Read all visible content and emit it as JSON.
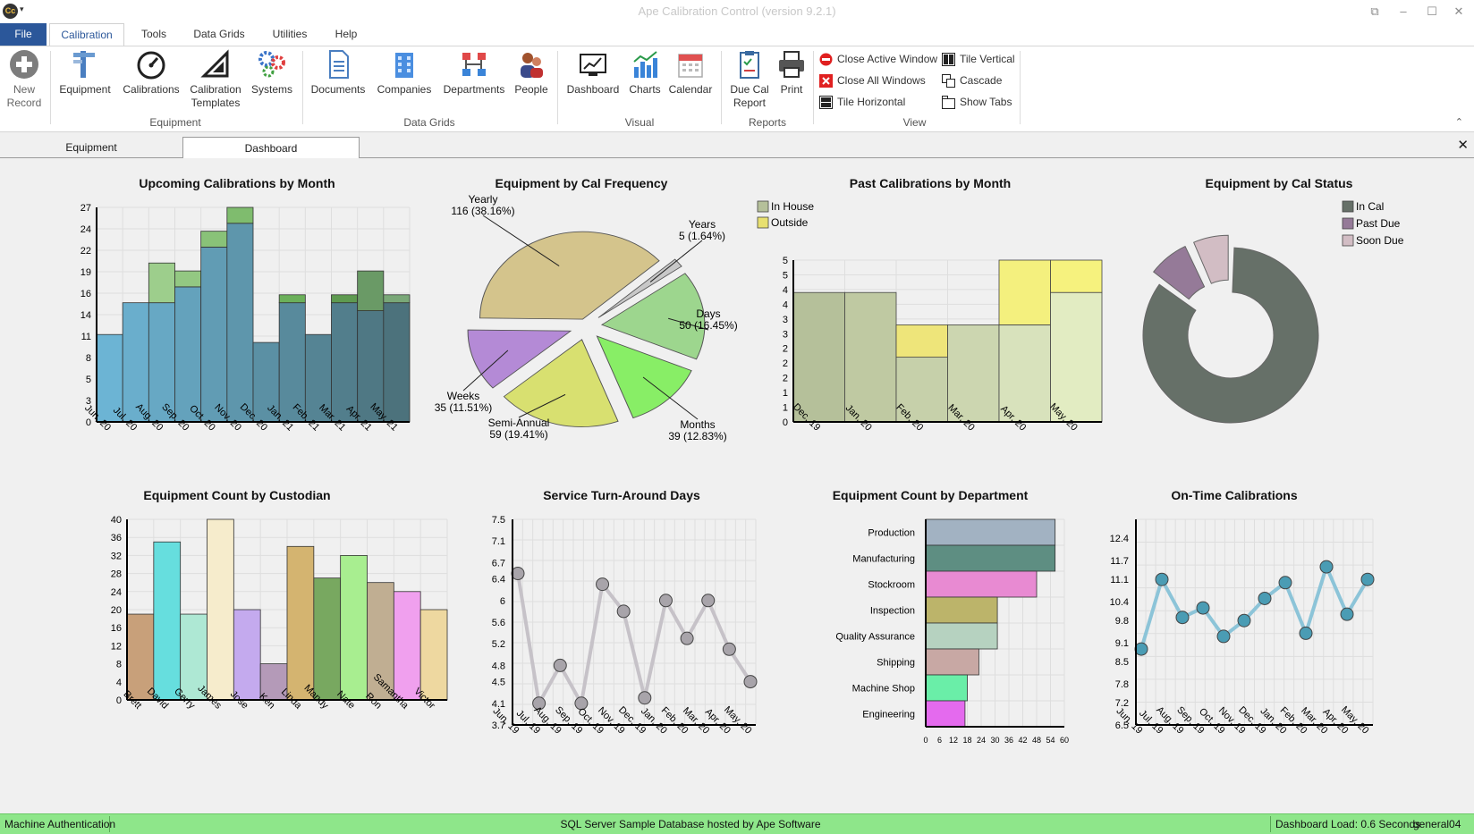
{
  "app": {
    "icon_text": "Cc",
    "title": "Ape Calibration Control (version 9.2.1)"
  },
  "menu": [
    "File",
    "Calibration",
    "Tools",
    "Data Grids",
    "Utilities",
    "Help"
  ],
  "ribbon": {
    "new_record": "New\nRecord",
    "groups": {
      "equipment": {
        "label": "Equipment",
        "buttons": [
          "Equipment",
          "Calibrations",
          "Calibration\nTemplates",
          "Systems"
        ]
      },
      "data_grids": {
        "label": "Data Grids",
        "buttons": [
          "Documents",
          "Companies",
          "Departments",
          "People"
        ]
      },
      "visual": {
        "label": "Visual",
        "buttons": [
          "Dashboard",
          "Charts",
          "Calendar"
        ]
      },
      "reports": {
        "label": "Reports",
        "buttons": [
          "Due Cal\nReport",
          "Print"
        ]
      },
      "view": {
        "label": "View",
        "buttons": [
          "Close Active Window",
          "Close All Windows",
          "Tile Horizontal",
          "Tile Vertical",
          "Cascade",
          "Show Tabs"
        ]
      }
    }
  },
  "tabs": [
    "Equipment",
    "Dashboard"
  ],
  "status": {
    "left": "Machine Authentication",
    "center": "SQL Server Sample Database hosted by Ape Software",
    "load": "Dashboard Load: 0.6 Seconds",
    "user": "general04"
  },
  "chart_data": [
    {
      "type": "bar",
      "title": "Upcoming Calibrations by Month",
      "categories": [
        "Jun, 20",
        "Jul, 20",
        "Aug, 20",
        "Sep, 20",
        "Oct, 20",
        "Nov, 20",
        "Dec, 20",
        "Jan, 21",
        "Feb, 21",
        "Mar, 21",
        "Apr, 21",
        "May, 21"
      ],
      "series": [
        {
          "values": [
            11,
            15,
            15,
            17,
            22,
            25,
            10,
            15,
            11,
            15,
            14,
            15
          ]
        },
        {
          "values": [
            0,
            0,
            5,
            2,
            2,
            2,
            0,
            1,
            0,
            1,
            5,
            1
          ]
        }
      ],
      "colors": [
        [
          "#6cb4d4",
          "#b3d9a0"
        ],
        [
          "#6aaecc",
          "#a8d496"
        ],
        [
          "#67a8c4",
          "#9dce8c"
        ],
        [
          "#64a2bc",
          "#93c882"
        ],
        [
          "#619cb4",
          "#89c278"
        ],
        [
          "#5e96ac",
          "#7fbc6e"
        ],
        [
          "#5b90a4",
          "#75b664"
        ],
        [
          "#588a9c",
          "#6bb05a"
        ],
        [
          "#558494",
          "#64a455"
        ],
        [
          "#527e8c",
          "#5e9a50"
        ],
        [
          "#4f7884",
          "#6a9a66"
        ],
        [
          "#4c727c",
          "#7aa878"
        ]
      ],
      "yticks": [
        0,
        3,
        5,
        8,
        11,
        14,
        16,
        19,
        22,
        24,
        27
      ],
      "ylim": [
        0,
        27
      ]
    },
    {
      "type": "pie",
      "title": "Equipment by Cal Frequency",
      "slices": [
        {
          "label": "Days",
          "value": 50,
          "percent": "16.45%",
          "color": "#9dd68e"
        },
        {
          "label": "Months",
          "value": 39,
          "percent": "12.83%",
          "color": "#88ee66"
        },
        {
          "label": "Semi-Annual",
          "value": 59,
          "percent": "19.41%",
          "color": "#d8e070"
        },
        {
          "label": "Weeks",
          "value": 35,
          "percent": "11.51%",
          "color": "#b48ad6"
        },
        {
          "label": "Yearly",
          "value": 116,
          "percent": "38.16%",
          "color": "#d4c48c"
        },
        {
          "label": "Years",
          "value": 5,
          "percent": "1.64%",
          "color": "#c8c8c8"
        }
      ]
    },
    {
      "type": "bar",
      "title": "Past Calibrations by Month",
      "categories": [
        "Dec, 19",
        "Jan, 20",
        "Feb, 20",
        "Mar, 20",
        "Apr, 20",
        "May, 20"
      ],
      "series": [
        {
          "name": "In House",
          "values": [
            4,
            4,
            2,
            3,
            3,
            4
          ]
        },
        {
          "name": "Outside",
          "values": [
            0,
            0,
            1,
            0,
            2,
            1
          ]
        }
      ],
      "colors": [
        [
          "#b5c09a",
          "#e8e070"
        ],
        [
          "#bfc9a2",
          "#ece878"
        ],
        [
          "#c6d0aa",
          "#eee57a"
        ],
        [
          "#ccd6b0",
          "#f0ee7e"
        ],
        [
          "#d8e2bc",
          "#f4f07e"
        ],
        [
          "#e2ecc2",
          "#f6f27e"
        ]
      ],
      "legend_colors": [
        "#b5c09a",
        "#e8e070"
      ],
      "yticks": [
        "0",
        "1",
        "1",
        "2",
        "2",
        "2",
        "3",
        "3",
        "4",
        "4",
        "5",
        "5"
      ],
      "ylim": [
        0,
        5
      ]
    },
    {
      "type": "pie",
      "title": "Equipment by Cal Status",
      "slices": [
        {
          "label": "In Cal",
          "value": 84,
          "color": "#667068"
        },
        {
          "label": "Past Due",
          "value": 8,
          "color": "#957a98"
        },
        {
          "label": "Soon Due",
          "value": 7,
          "color": "#d2bdc4"
        }
      ]
    },
    {
      "type": "bar",
      "title": "Equipment Count by Custodian",
      "categories": [
        "Brett",
        "David",
        "Gerry",
        "James",
        "Jose",
        "Ken",
        "Linda",
        "Mandy",
        "Nate",
        "Ron",
        "Samantha",
        "Victor"
      ],
      "values": [
        19,
        35,
        19,
        40,
        20,
        8,
        34,
        27,
        32,
        26,
        24,
        20
      ],
      "colors": [
        "#c8a07a",
        "#66dede",
        "#aee8d4",
        "#f6eccc",
        "#c4aaee",
        "#b49ab8",
        "#d4b470",
        "#78a860",
        "#a8ee90",
        "#c0ae92",
        "#f0a0ee",
        "#eed8a0"
      ],
      "yticks": [
        0,
        4,
        8,
        12,
        16,
        20,
        24,
        28,
        32,
        36,
        40
      ],
      "ylim": [
        0,
        40
      ]
    },
    {
      "type": "line",
      "title": "Service Turn-Around Days",
      "x": [
        "Jun, 19",
        "Jul, 19",
        "Aug, 19",
        "Sep, 19",
        "Oct, 19",
        "Nov, 19",
        "Dec, 19",
        "Jan, 20",
        "Feb, 20",
        "Mar, 20",
        "Apr, 20",
        "May, 20"
      ],
      "values": [
        6.5,
        4.1,
        4.8,
        4.1,
        6.3,
        5.8,
        4.2,
        6.0,
        5.3,
        6.0,
        5.1,
        4.5
      ],
      "line_color": "#c6c2c8",
      "point_color": "#a8a4aa",
      "yticks": [
        "3.7",
        "4.1",
        "4.5",
        "4.8",
        "5.2",
        "5.6",
        "6",
        "6.4",
        "6.7",
        "7.1",
        "7.5"
      ],
      "ylim": [
        3.7,
        7.5
      ]
    },
    {
      "type": "bar",
      "orientation": "horizontal",
      "title": "Equipment Count by Department",
      "categories": [
        "Production",
        "Manufacturing",
        "Stockroom",
        "Inspection",
        "Quality Assurance",
        "Shipping",
        "Machine Shop",
        "Engineering"
      ],
      "values": [
        56,
        56,
        48,
        31,
        31,
        23,
        18,
        17
      ],
      "colors": [
        "#a2b2c2",
        "#5e8e82",
        "#e88ad2",
        "#bcb46a",
        "#b6d2c0",
        "#c8a8a4",
        "#6aeea8",
        "#e46aee"
      ],
      "xticks": [
        0,
        6,
        12,
        18,
        24,
        30,
        36,
        42,
        48,
        54,
        60
      ],
      "xlim": [
        0,
        60
      ]
    },
    {
      "type": "line",
      "title": "On-Time Calibrations",
      "x": [
        "Jun, 19",
        "Jul, 19",
        "Aug, 19",
        "Sep, 19",
        "Oct, 19",
        "Nov, 19",
        "Dec, 19",
        "Jan, 20",
        "Feb, 20",
        "Mar, 20",
        "Apr, 20",
        "May, 20"
      ],
      "values": [
        8.9,
        11.1,
        9.9,
        10.2,
        9.3,
        9.8,
        10.5,
        11.0,
        9.4,
        11.5,
        10.0,
        11.1
      ],
      "line_color": "#8cc4d8",
      "point_color": "#4a9cb4",
      "yticks": [
        "6.5",
        "7.2",
        "7.8",
        "8.5",
        "9.1",
        "9.8",
        "10.4",
        "11.1",
        "11.7",
        "12.4"
      ],
      "ylim": [
        6.5,
        13.0
      ]
    }
  ]
}
